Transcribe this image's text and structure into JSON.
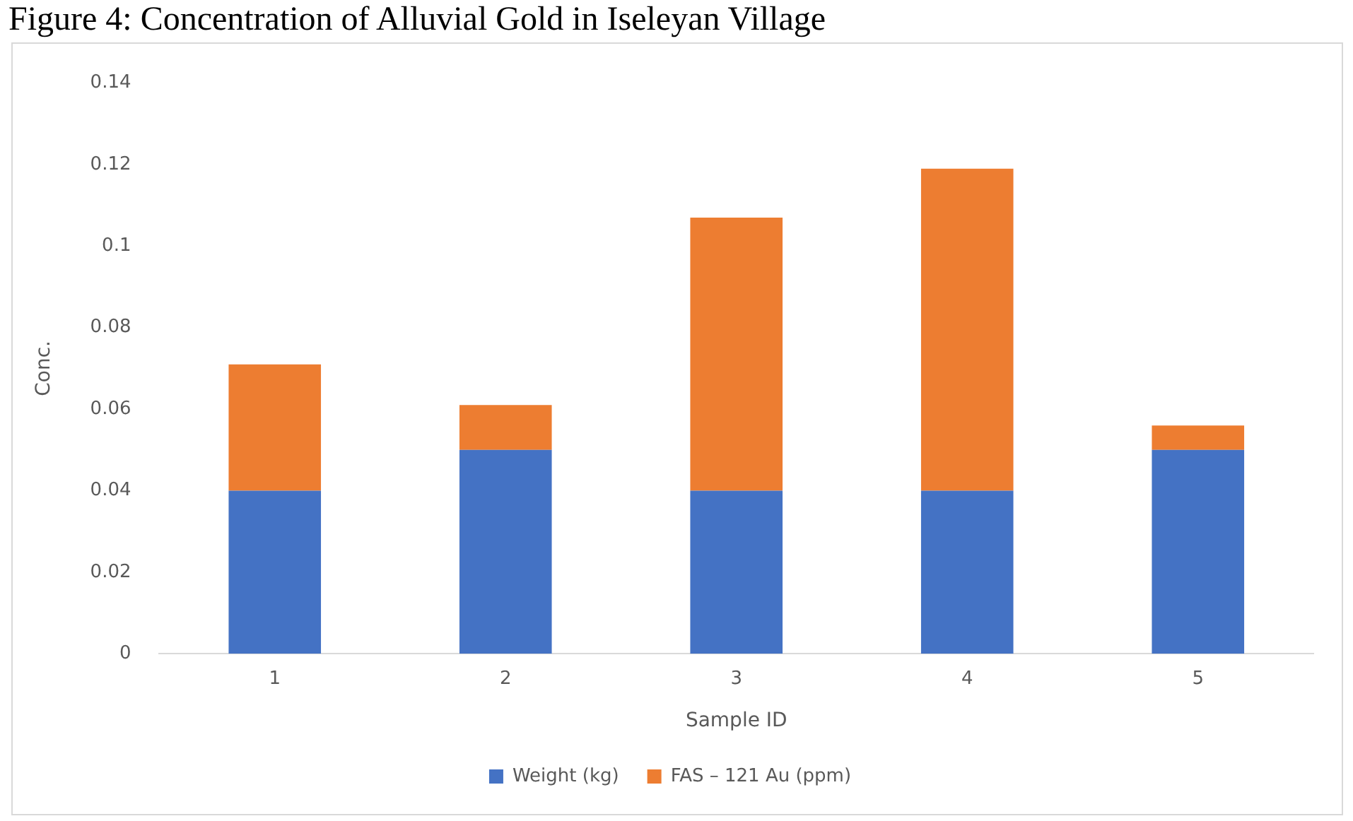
{
  "chart_data": {
    "type": "bar",
    "title": "Figure 4: Concentration of Alluvial Gold in Iseleyan Village",
    "xlabel": "Sample ID",
    "ylabel": "Conc.",
    "categories": [
      "1",
      "2",
      "3",
      "4",
      "5"
    ],
    "stacked": true,
    "series": [
      {
        "name": "Weight (kg)",
        "color": "#4472c4",
        "values": [
          0.04,
          0.05,
          0.04,
          0.04,
          0.05
        ]
      },
      {
        "name": "FAS – 121 Au (ppm)",
        "color": "#ed7d31",
        "values": [
          0.031,
          0.011,
          0.067,
          0.079,
          0.006
        ]
      }
    ],
    "ylim": [
      0,
      0.14
    ],
    "yticks": [
      0,
      0.02,
      0.04,
      0.06,
      0.08,
      0.1,
      0.12,
      0.14
    ],
    "grid": false,
    "legend": "bottom"
  }
}
